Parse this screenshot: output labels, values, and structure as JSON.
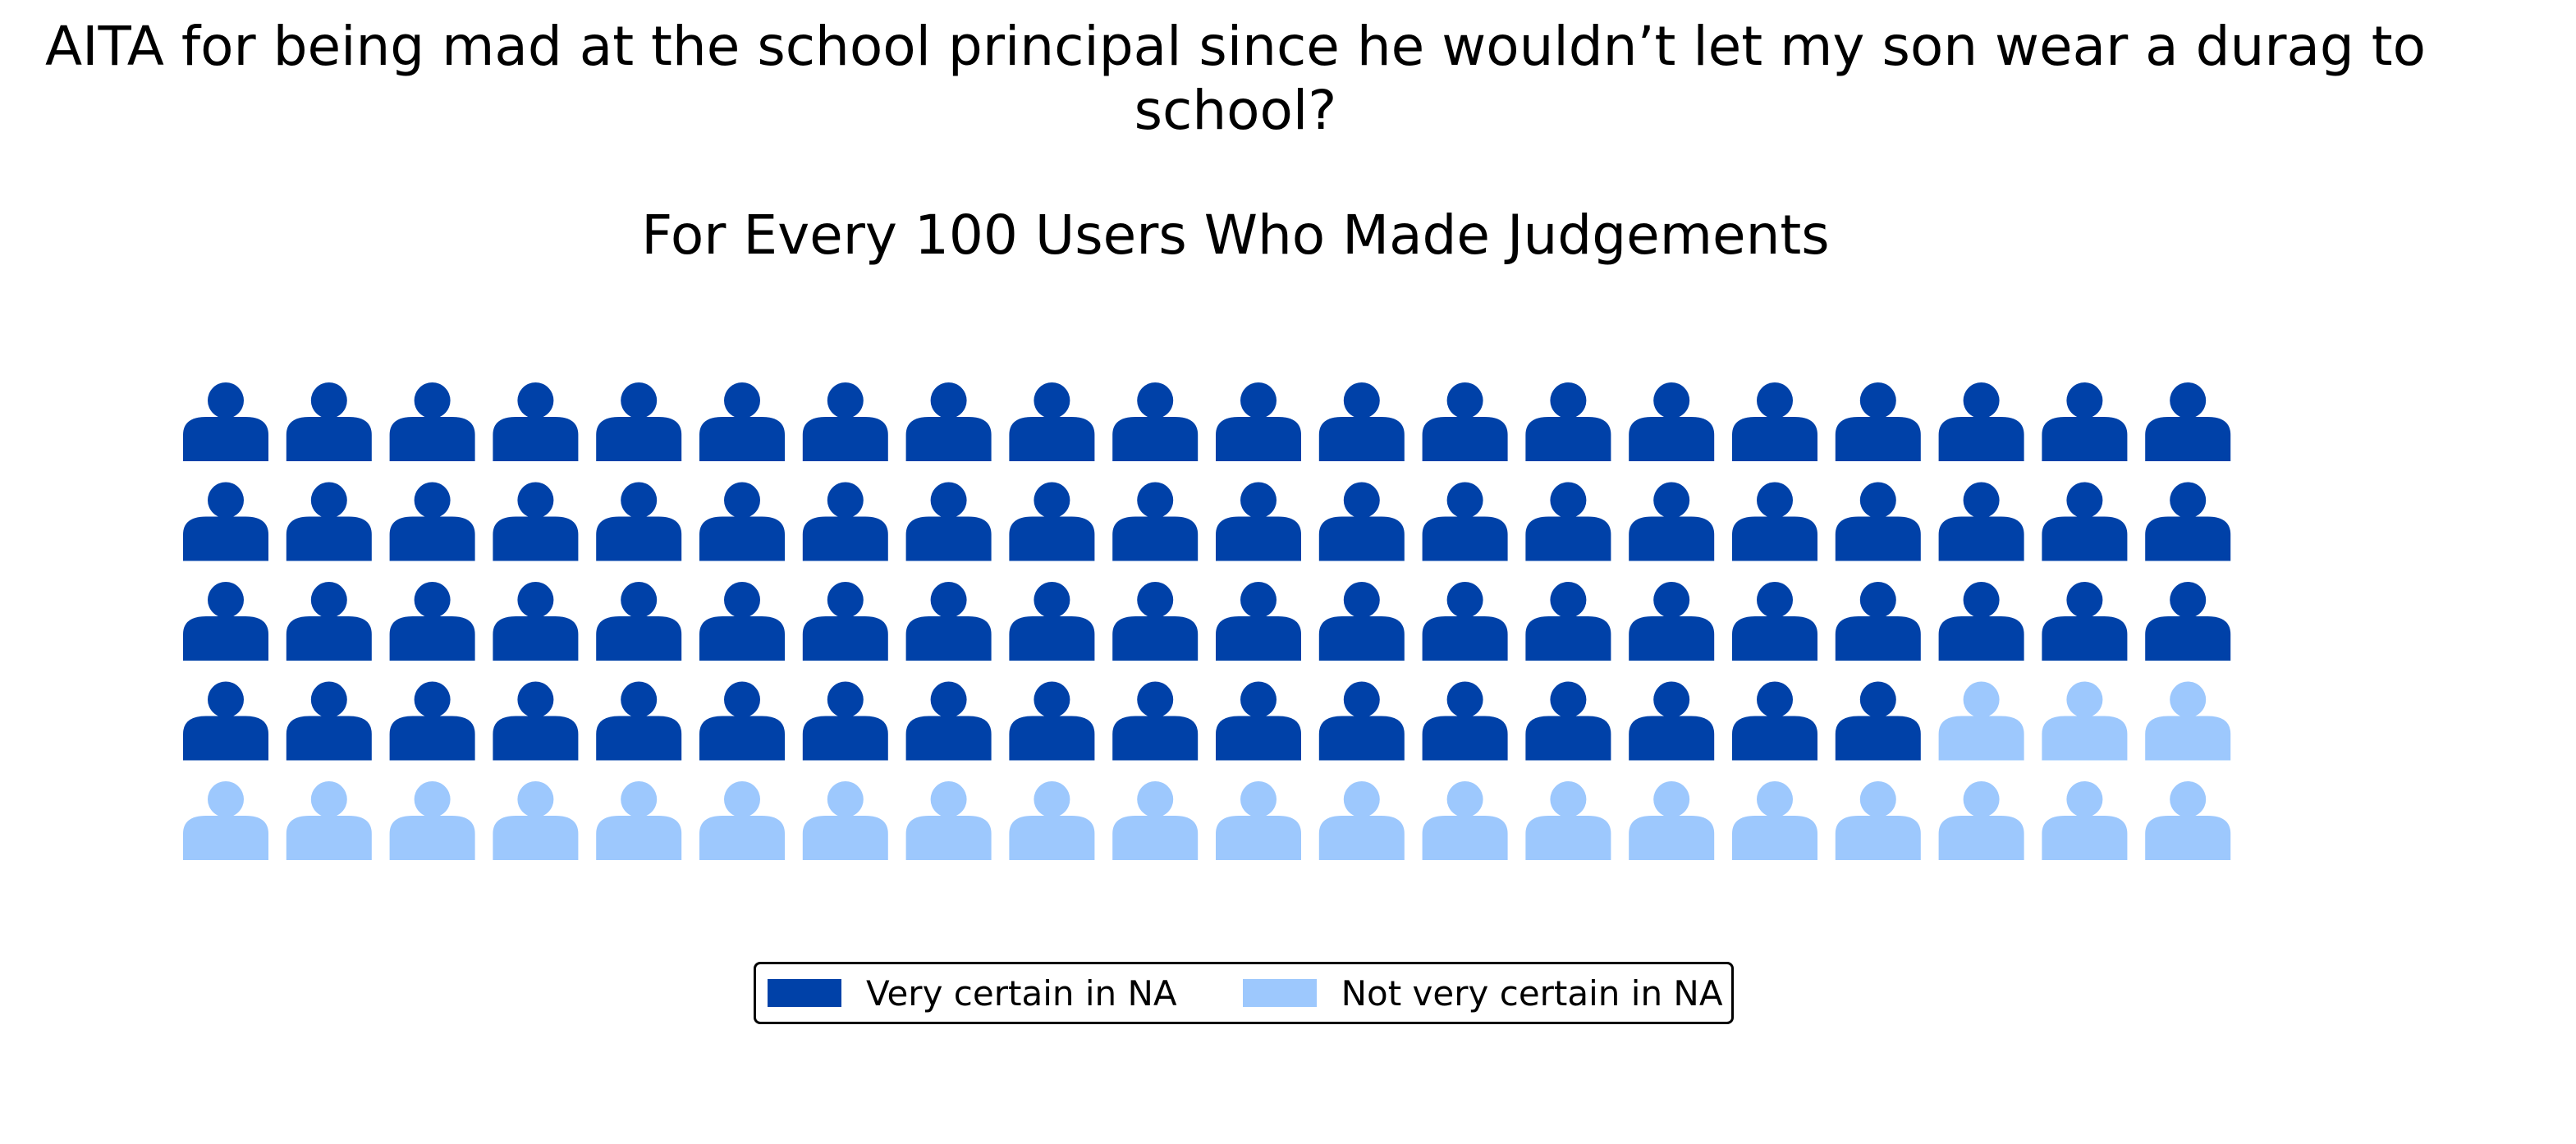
{
  "chart_data": {
    "type": "waffle",
    "title": "AITA for being mad at the school principal since he wouldn’t let my son wear a durag to\nschool?",
    "subtitle": "For Every 100 Users Who Made Judgements",
    "grid": {
      "rows": 5,
      "columns": 20,
      "fill_order": "row-major"
    },
    "categories": [
      "Very certain in NA",
      "Not very certain in NA"
    ],
    "values": [
      77,
      23
    ],
    "colors": [
      "#0041a8",
      "#9dc8fd"
    ],
    "icon": "person-icon",
    "legend_position": "bottom-center"
  }
}
